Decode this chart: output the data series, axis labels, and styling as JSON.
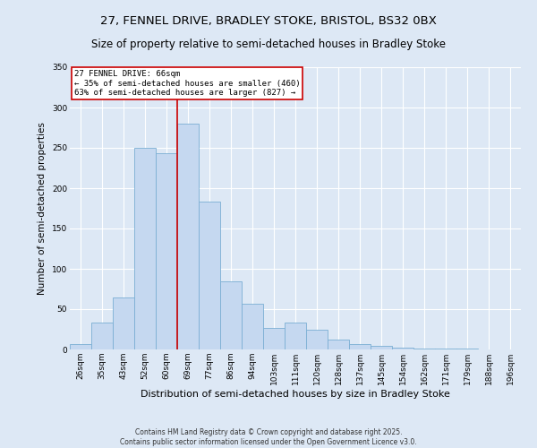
{
  "title": "27, FENNEL DRIVE, BRADLEY STOKE, BRISTOL, BS32 0BX",
  "subtitle": "Size of property relative to semi-detached houses in Bradley Stoke",
  "xlabel": "Distribution of semi-detached houses by size in Bradley Stoke",
  "ylabel": "Number of semi-detached properties",
  "categories": [
    "26sqm",
    "35sqm",
    "43sqm",
    "52sqm",
    "60sqm",
    "69sqm",
    "77sqm",
    "86sqm",
    "94sqm",
    "103sqm",
    "111sqm",
    "120sqm",
    "128sqm",
    "137sqm",
    "145sqm",
    "154sqm",
    "162sqm",
    "171sqm",
    "179sqm",
    "188sqm",
    "196sqm"
  ],
  "values": [
    7,
    33,
    64,
    250,
    243,
    280,
    183,
    84,
    57,
    27,
    33,
    25,
    12,
    7,
    5,
    2,
    1,
    1,
    1,
    0,
    0
  ],
  "bar_color": "#c5d8f0",
  "bar_edge_color": "#7bafd4",
  "vline_x": 4.5,
  "vline_color": "#cc0000",
  "annotation_text": "27 FENNEL DRIVE: 66sqm\n← 35% of semi-detached houses are smaller (460)\n63% of semi-detached houses are larger (827) →",
  "annotation_box_color": "#ffffff",
  "annotation_box_edge": "#cc0000",
  "footer": "Contains HM Land Registry data © Crown copyright and database right 2025.\nContains public sector information licensed under the Open Government Licence v3.0.",
  "ylim": [
    0,
    350
  ],
  "background_color": "#dde8f5",
  "grid_color": "#ffffff",
  "title_fontsize": 9.5,
  "subtitle_fontsize": 8.5,
  "ylabel_fontsize": 7.5,
  "xlabel_fontsize": 8,
  "tick_fontsize": 6.5,
  "annotation_fontsize": 6.5,
  "footer_fontsize": 5.5
}
